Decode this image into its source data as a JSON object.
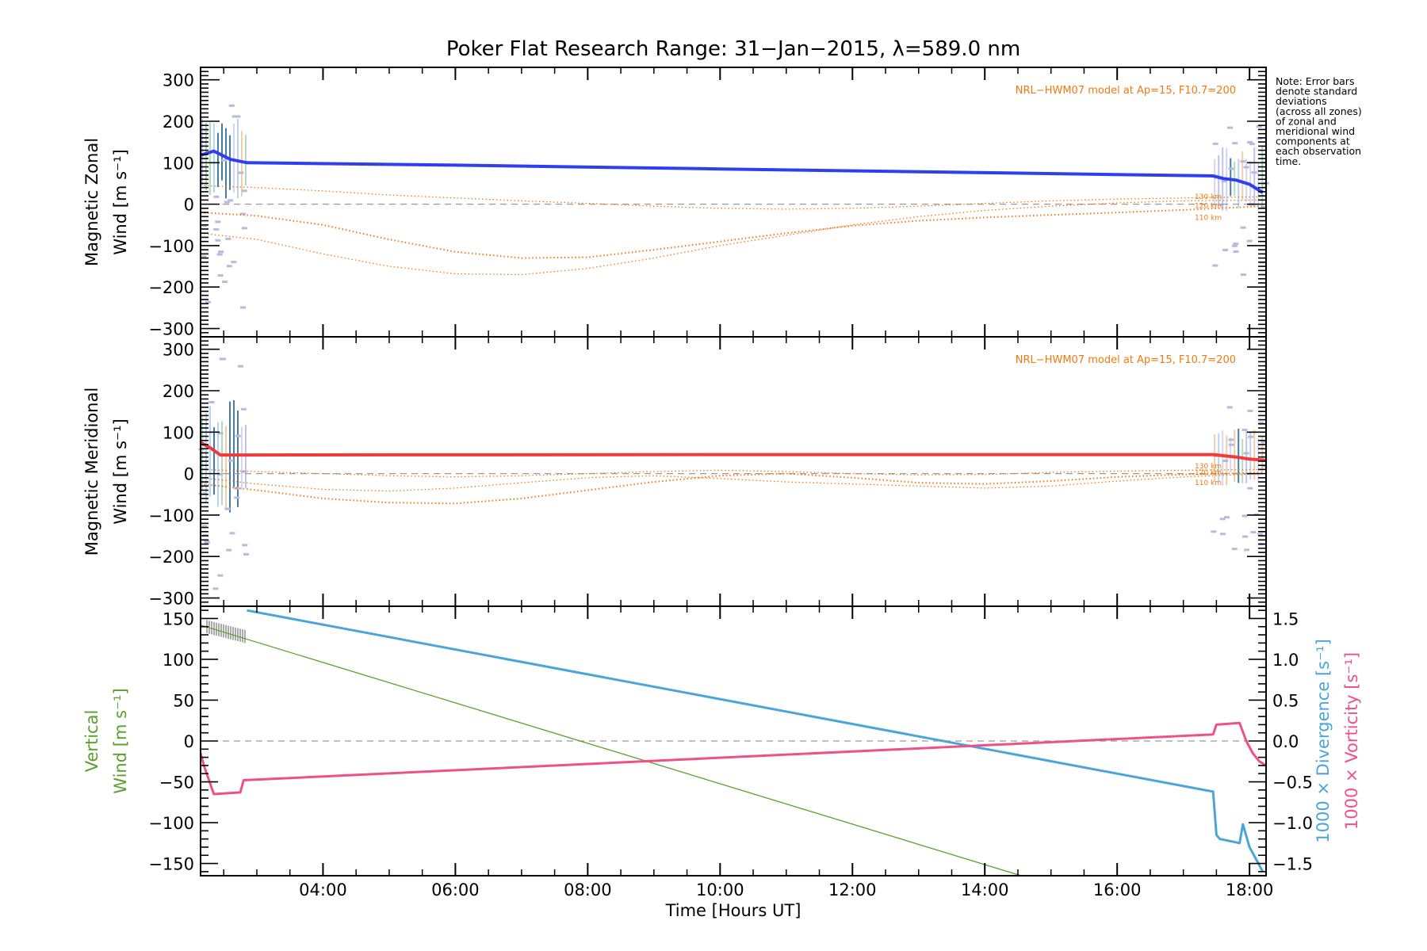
{
  "chart_data": {
    "type": "line",
    "title": "Poker Flat Research Range: 31−Jan−2015, λ=589.0 nm",
    "xlabel": "Time [Hours UT]",
    "xlim": [
      2.15,
      18.25
    ],
    "x_ticks": [
      {
        "x": 4,
        "label": "04:00"
      },
      {
        "x": 6,
        "label": "06:00"
      },
      {
        "x": 8,
        "label": "08:00"
      },
      {
        "x": 10,
        "label": "10:00"
      },
      {
        "x": 12,
        "label": "12:00"
      },
      {
        "x": 14,
        "label": "14:00"
      },
      {
        "x": 16,
        "label": "16:00"
      },
      {
        "x": 18,
        "label": "18:00"
      }
    ],
    "note_lines": [
      "Note: Error bars",
      "denote standard",
      "deviations",
      "(across all zones)",
      "of zonal and",
      "meridional wind",
      "components at",
      "each observation",
      "time."
    ],
    "observation_windows": [
      [
        2.15,
        2.85
      ],
      [
        17.45,
        18.25
      ]
    ],
    "panels": [
      {
        "id": "zonal",
        "ylabel_lines": [
          "Magnetic Zonal",
          "Wind [m s⁻¹]"
        ],
        "ylim": [
          -320,
          330
        ],
        "y_ticks": [
          {
            "y": 300,
            "label": "300"
          },
          {
            "y": 200,
            "label": "200"
          },
          {
            "y": 100,
            "label": "100"
          },
          {
            "y": 0,
            "label": "0"
          },
          {
            "y": -100,
            "label": "−100"
          },
          {
            "y": -200,
            "label": "−200"
          },
          {
            "y": -300,
            "label": "−300"
          }
        ],
        "model_label": "NRL−HWM07 model at Ap=15, F10.7=200",
        "altitude_labels": [
          "130 km",
          "120 km",
          "110 km"
        ],
        "series": [
          {
            "name": "Mean zonal wind",
            "color": "#2f3ff0",
            "x": [
              2.15,
              2.35,
              2.6,
              2.85,
              6,
              10,
              14,
              17.45,
              17.6,
              17.8,
              18.0,
              18.2
            ],
            "y": [
              118,
              128,
              108,
              100,
              94,
              85,
              76,
              68,
              62,
              58,
              48,
              28
            ]
          },
          {
            "name": "HWM07 110 km",
            "color": "#f07a10",
            "x": [
              2.15,
              3,
              4,
              5,
              6,
              7,
              8,
              9,
              10,
              11,
              12,
              13,
              14,
              15,
              16,
              17,
              18.2
            ],
            "y": [
              -20,
              -28,
              -50,
              -85,
              -115,
              -130,
              -128,
              -110,
              -90,
              -70,
              -52,
              -40,
              -32,
              -26,
              -20,
              -14,
              -5
            ]
          },
          {
            "name": "HWM07 120 km",
            "color": "#f07a10",
            "x": [
              2.15,
              3,
              4,
              5,
              6,
              7,
              8,
              9,
              10,
              11,
              12,
              13,
              14,
              15,
              16,
              17,
              18.2
            ],
            "y": [
              -70,
              -85,
              -120,
              -150,
              -168,
              -170,
              -155,
              -130,
              -100,
              -75,
              -50,
              -30,
              -15,
              -5,
              3,
              8,
              10
            ]
          },
          {
            "name": "HWM07 130 km",
            "color": "#f07a10",
            "x": [
              2.15,
              3,
              4,
              5,
              6,
              7,
              8,
              9,
              10,
              11,
              12,
              13,
              14,
              15,
              16,
              17,
              18.2
            ],
            "y": [
              45,
              40,
              32,
              22,
              15,
              8,
              2,
              -5,
              -10,
              -12,
              -10,
              -5,
              2,
              8,
              12,
              15,
              18
            ]
          }
        ]
      },
      {
        "id": "meridional",
        "ylabel_lines": [
          "Magnetic Meridional",
          "Wind [m s⁻¹]"
        ],
        "ylim": [
          -320,
          330
        ],
        "y_ticks": [
          {
            "y": 300,
            "label": "300"
          },
          {
            "y": 200,
            "label": "200"
          },
          {
            "y": 100,
            "label": "100"
          },
          {
            "y": 0,
            "label": "0"
          },
          {
            "y": -100,
            "label": "−100"
          },
          {
            "y": -200,
            "label": "−200"
          },
          {
            "y": -300,
            "label": "−300"
          }
        ],
        "model_label": "NRL−HWM07 model at Ap=15, F10.7=200",
        "altitude_labels": [
          "130 km",
          "120 km",
          "110 km"
        ],
        "series": [
          {
            "name": "Mean meridional wind",
            "color": "#f23a3a",
            "x": [
              2.15,
              2.3,
              2.45,
              2.85,
              10,
              17.45,
              17.8,
              18.0,
              18.25
            ],
            "y": [
              75,
              62,
              45,
              45,
              46,
              46,
              40,
              35,
              32
            ]
          },
          {
            "name": "HWM07 110 km",
            "color": "#f07a10",
            "x": [
              2.15,
              3,
              4,
              5,
              6,
              7,
              8,
              9,
              10,
              11,
              12,
              13,
              14,
              15,
              16,
              17,
              18.2
            ],
            "y": [
              -25,
              -40,
              -60,
              -70,
              -72,
              -60,
              -40,
              -20,
              -5,
              0,
              -10,
              -22,
              -25,
              -18,
              -8,
              -2,
              2
            ]
          },
          {
            "name": "HWM07 120 km",
            "color": "#f07a10",
            "x": [
              2.15,
              3,
              4,
              5,
              6,
              7,
              8,
              9,
              10,
              11,
              12,
              13,
              14,
              15,
              16,
              17,
              18.2
            ],
            "y": [
              -10,
              -25,
              -38,
              -42,
              -35,
              -22,
              -10,
              -5,
              -12,
              -20,
              -25,
              -30,
              -35,
              -30,
              -18,
              -8,
              0
            ]
          },
          {
            "name": "HWM07 130 km",
            "color": "#f07a10",
            "x": [
              2.15,
              3,
              4,
              5,
              6,
              7,
              8,
              9,
              10,
              11,
              12,
              13,
              14,
              15,
              16,
              17,
              18.2
            ],
            "y": [
              10,
              5,
              0,
              -5,
              -8,
              -5,
              0,
              5,
              8,
              5,
              0,
              -3,
              -2,
              3,
              6,
              8,
              10
            ]
          }
        ]
      },
      {
        "id": "vertical",
        "ylabel_lines": [
          "Vertical",
          "Wind [m s⁻¹]"
        ],
        "ylim": [
          -165,
          165
        ],
        "y_ticks": [
          {
            "y": 150,
            "label": "150"
          },
          {
            "y": 100,
            "label": "100"
          },
          {
            "y": 50,
            "label": "50"
          },
          {
            "y": 0,
            "label": "0"
          },
          {
            "y": -50,
            "label": "−50"
          },
          {
            "y": -100,
            "label": "−100"
          },
          {
            "y": -150,
            "label": "−150"
          }
        ],
        "right_axis": {
          "ylim": [
            -1.65,
            1.65
          ],
          "ticks": [
            {
              "y": 1.5,
              "label": "1.5"
            },
            {
              "y": 1.0,
              "label": "1.0"
            },
            {
              "y": 0.5,
              "label": "0.5"
            },
            {
              "y": 0.0,
              "label": "0.0"
            },
            {
              "y": -0.5,
              "label": "−0.5"
            },
            {
              "y": -1.0,
              "label": "−1.0"
            },
            {
              "y": -1.5,
              "label": "−1.5"
            }
          ],
          "label_divergence": "1000 × Divergence [s⁻¹]",
          "label_vorticity": "1000 × Vorticity [s⁻¹]"
        },
        "series": [
          {
            "name": "Vertical wind",
            "axis": "left",
            "color": "#5aa02c",
            "x": [
              2.15,
              14.55
            ],
            "y": [
              142,
              -165
            ]
          },
          {
            "name": "1000 x Divergence",
            "axis": "right",
            "color": "#4aa5d8",
            "x": [
              2.85,
              17.45,
              17.5,
              17.55,
              17.85,
              17.9,
              18.0,
              18.1,
              18.2
            ],
            "y": [
              1.6,
              -0.62,
              -1.15,
              -1.2,
              -1.25,
              -1.02,
              -1.3,
              -1.45,
              -1.6
            ]
          },
          {
            "name": "1000 x Vorticity",
            "axis": "right",
            "color": "#f0508a",
            "x": [
              2.15,
              2.2,
              2.35,
              2.75,
              2.8,
              17.45,
              17.5,
              17.85,
              17.95,
              18.05,
              18.15,
              18.25
            ],
            "y": [
              -0.15,
              -0.3,
              -0.65,
              -0.63,
              -0.48,
              0.08,
              0.2,
              0.22,
              0.0,
              -0.15,
              -0.25,
              -0.3
            ]
          }
        ]
      }
    ]
  }
}
